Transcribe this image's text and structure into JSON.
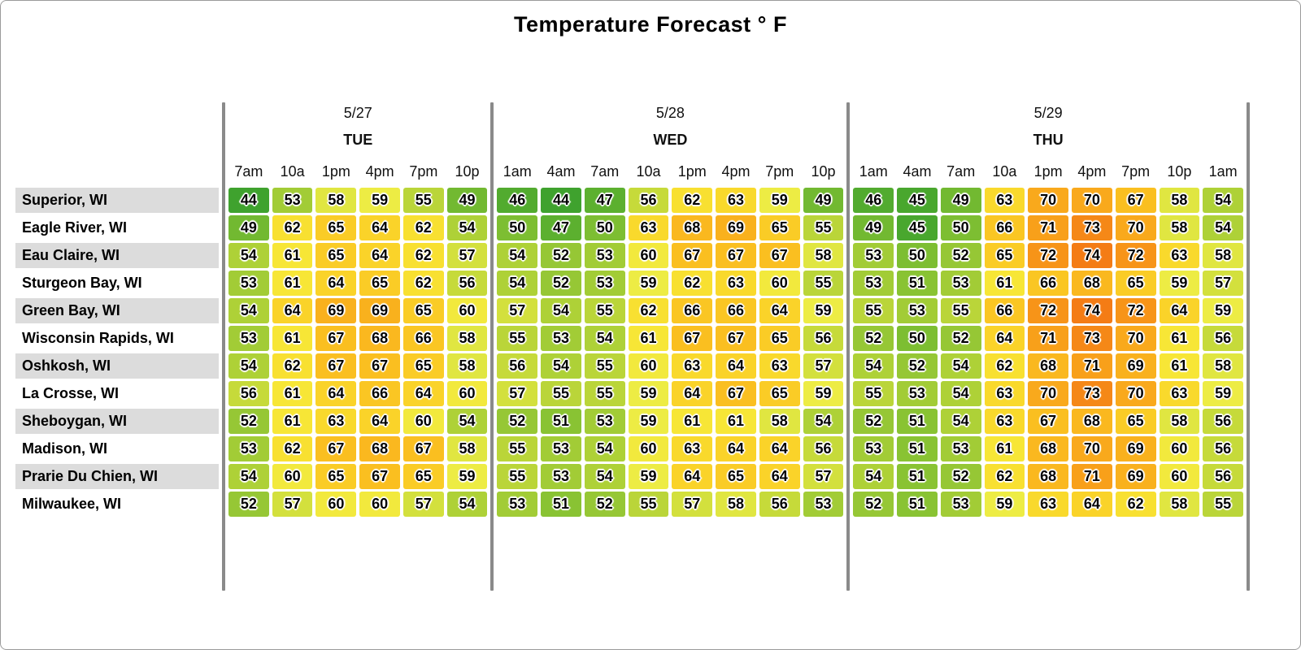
{
  "title": "Temperature Forecast ° F",
  "chart_data": {
    "type": "heatmap",
    "unit": "°F",
    "legend_position": "none",
    "grid": "off",
    "days": [
      {
        "date": "5/27",
        "weekday": "TUE",
        "times": [
          "7am",
          "10a",
          "1pm",
          "4pm",
          "7pm",
          "10p"
        ]
      },
      {
        "date": "5/28",
        "weekday": "WED",
        "times": [
          "1am",
          "4am",
          "7am",
          "10a",
          "1pm",
          "4pm",
          "7pm",
          "10p"
        ]
      },
      {
        "date": "5/29",
        "weekday": "THU",
        "times": [
          "1am",
          "4am",
          "7am",
          "10a",
          "1pm",
          "4pm",
          "7pm",
          "10p",
          "1am"
        ]
      }
    ],
    "rows": [
      {
        "city": "Superior, WI",
        "values": [
          [
            44,
            53,
            58,
            59,
            55,
            49
          ],
          [
            46,
            44,
            47,
            56,
            62,
            63,
            59,
            49
          ],
          [
            46,
            45,
            49,
            63,
            70,
            70,
            67,
            58,
            54
          ]
        ]
      },
      {
        "city": "Eagle River, WI",
        "values": [
          [
            49,
            62,
            65,
            64,
            62,
            54
          ],
          [
            50,
            47,
            50,
            63,
            68,
            69,
            65,
            55
          ],
          [
            49,
            45,
            50,
            66,
            71,
            73,
            70,
            58,
            54
          ]
        ]
      },
      {
        "city": "Eau Claire, WI",
        "values": [
          [
            54,
            61,
            65,
            64,
            62,
            57
          ],
          [
            54,
            52,
            53,
            60,
            67,
            67,
            67,
            58
          ],
          [
            53,
            50,
            52,
            65,
            72,
            74,
            72,
            63,
            58
          ]
        ]
      },
      {
        "city": "Sturgeon Bay, WI",
        "values": [
          [
            53,
            61,
            64,
            65,
            62,
            56
          ],
          [
            54,
            52,
            53,
            59,
            62,
            63,
            60,
            55
          ],
          [
            53,
            51,
            53,
            61,
            66,
            68,
            65,
            59,
            57
          ]
        ]
      },
      {
        "city": "Green Bay, WI",
        "values": [
          [
            54,
            64,
            69,
            69,
            65,
            60
          ],
          [
            57,
            54,
            55,
            62,
            66,
            66,
            64,
            59
          ],
          [
            55,
            53,
            55,
            66,
            72,
            74,
            72,
            64,
            59
          ]
        ]
      },
      {
        "city": "Wisconsin Rapids, WI",
        "values": [
          [
            53,
            61,
            67,
            68,
            66,
            58
          ],
          [
            55,
            53,
            54,
            61,
            67,
            67,
            65,
            56
          ],
          [
            52,
            50,
            52,
            64,
            71,
            73,
            70,
            61,
            56
          ]
        ]
      },
      {
        "city": "Oshkosh, WI",
        "values": [
          [
            54,
            62,
            67,
            67,
            65,
            58
          ],
          [
            56,
            54,
            55,
            60,
            63,
            64,
            63,
            57
          ],
          [
            54,
            52,
            54,
            62,
            68,
            71,
            69,
            61,
            58
          ]
        ]
      },
      {
        "city": "La Crosse, WI",
        "values": [
          [
            56,
            61,
            64,
            66,
            64,
            60
          ],
          [
            57,
            55,
            55,
            59,
            64,
            67,
            65,
            59
          ],
          [
            55,
            53,
            54,
            63,
            70,
            73,
            70,
            63,
            59
          ]
        ]
      },
      {
        "city": "Sheboygan, WI",
        "values": [
          [
            52,
            61,
            63,
            64,
            60,
            54
          ],
          [
            52,
            51,
            53,
            59,
            61,
            61,
            58,
            54
          ],
          [
            52,
            51,
            54,
            63,
            67,
            68,
            65,
            58,
            56
          ]
        ]
      },
      {
        "city": "Madison, WI",
        "values": [
          [
            53,
            62,
            67,
            68,
            67,
            58
          ],
          [
            55,
            53,
            54,
            60,
            63,
            64,
            64,
            56
          ],
          [
            53,
            51,
            53,
            61,
            68,
            70,
            69,
            60,
            56
          ]
        ]
      },
      {
        "city": "Prarie Du Chien, WI",
        "values": [
          [
            54,
            60,
            65,
            67,
            65,
            59
          ],
          [
            55,
            53,
            54,
            59,
            64,
            65,
            64,
            57
          ],
          [
            54,
            51,
            52,
            62,
            68,
            71,
            69,
            60,
            56
          ]
        ]
      },
      {
        "city": "Milwaukee, WI",
        "values": [
          [
            52,
            57,
            60,
            60,
            57,
            54
          ],
          [
            53,
            51,
            52,
            55,
            57,
            58,
            56,
            53
          ],
          [
            52,
            51,
            53,
            59,
            63,
            64,
            62,
            58,
            55
          ]
        ]
      }
    ],
    "color_scale": {
      "description": "temperature to cell background",
      "stops": [
        {
          "t": 44,
          "c": "#3FA22E"
        },
        {
          "t": 47,
          "c": "#5CB02F"
        },
        {
          "t": 50,
          "c": "#7DBE32"
        },
        {
          "t": 53,
          "c": "#A2CC36"
        },
        {
          "t": 56,
          "c": "#C6DA3A"
        },
        {
          "t": 59,
          "c": "#EDEC44"
        },
        {
          "t": 61,
          "c": "#F7E636"
        },
        {
          "t": 63,
          "c": "#F9D92C"
        },
        {
          "t": 65,
          "c": "#FACC26"
        },
        {
          "t": 67,
          "c": "#FABF20"
        },
        {
          "t": 69,
          "c": "#F9B11D"
        },
        {
          "t": 71,
          "c": "#F8A01A"
        },
        {
          "t": 74,
          "c": "#F47C15"
        }
      ]
    },
    "separator_color": "#8a8a8a",
    "row_label_stripe_color": "#dcdcdc"
  }
}
